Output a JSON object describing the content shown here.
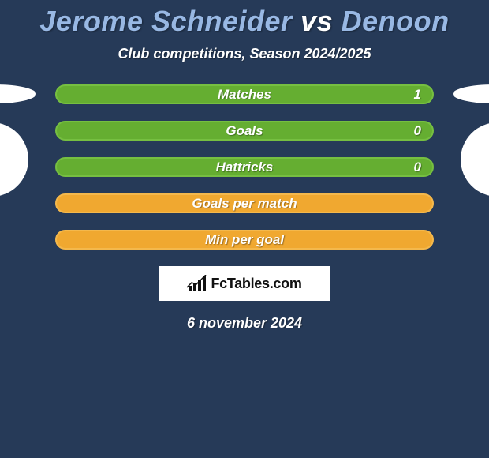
{
  "header": {
    "player1": "Jerome Schneider",
    "vs": "vs",
    "player2": "Denoon",
    "subtitle": "Club competitions, Season 2024/2025",
    "player1_color": "#98b8e4",
    "player2_color": "#98b8e4"
  },
  "stats": {
    "rows": [
      {
        "label": "Matches",
        "value": "1",
        "style": "green"
      },
      {
        "label": "Goals",
        "value": "0",
        "style": "green"
      },
      {
        "label": "Hattricks",
        "value": "0",
        "style": "green"
      },
      {
        "label": "Goals per match",
        "value": "",
        "style": "orange"
      },
      {
        "label": "Min per goal",
        "value": "",
        "style": "orange"
      }
    ],
    "colors": {
      "green_bg": "#65ae31",
      "green_border": "#76bf41",
      "orange_bg": "#f0a830",
      "orange_border": "#f4b84c",
      "background": "#263a58"
    }
  },
  "brand": {
    "text": "FcTables.com"
  },
  "footer": {
    "date": "6 november 2024"
  }
}
